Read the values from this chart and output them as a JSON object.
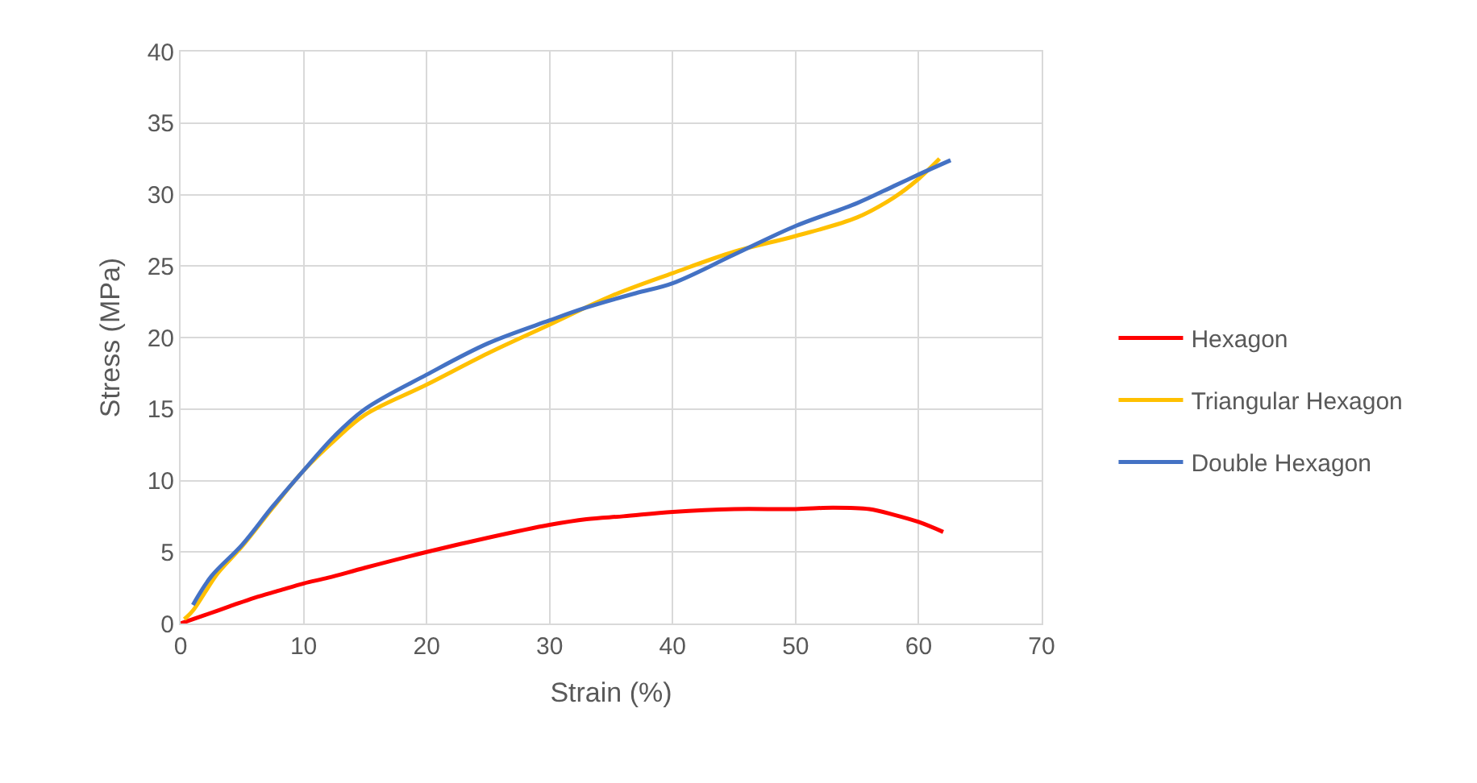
{
  "chart_data": {
    "type": "line",
    "xlabel": "Strain (%)",
    "ylabel": "Stress (MPa)",
    "xlim": [
      0,
      70
    ],
    "ylim": [
      0,
      40
    ],
    "xticks": [
      0,
      10,
      20,
      30,
      40,
      50,
      60,
      70
    ],
    "yticks": [
      0,
      5,
      10,
      15,
      20,
      25,
      30,
      35,
      40
    ],
    "grid": true,
    "legend": "right",
    "marker": "none",
    "line_style": "solid",
    "series": [
      {
        "name": "Hexagon",
        "color": "#ff0000",
        "x": [
          0,
          2,
          4,
          6,
          8,
          10,
          12,
          15,
          20,
          25,
          30,
          33,
          36,
          40,
          45,
          50,
          53,
          56,
          58,
          60,
          62
        ],
        "values": [
          0,
          0.6,
          1.2,
          1.8,
          2.3,
          2.8,
          3.2,
          3.9,
          5.0,
          6.0,
          6.9,
          7.3,
          7.5,
          7.8,
          8.0,
          8.0,
          8.1,
          8.0,
          7.6,
          7.1,
          6.4
        ]
      },
      {
        "name": "Triangular Hexagon",
        "color": "#ffc000",
        "x": [
          0.3,
          1,
          2,
          3,
          5,
          7.5,
          10,
          12.5,
          15,
          20,
          25,
          30,
          35,
          40,
          45,
          50,
          55,
          58,
          60,
          61.7
        ],
        "values": [
          0.3,
          0.9,
          2.2,
          3.5,
          5.4,
          8.1,
          10.7,
          12.8,
          14.6,
          16.7,
          18.9,
          20.9,
          22.9,
          24.5,
          26.0,
          27.1,
          28.4,
          29.8,
          31.1,
          32.5
        ]
      },
      {
        "name": "Double Hexagon",
        "color": "#4472c4",
        "x": [
          1,
          2.5,
          5,
          7.5,
          10,
          12.5,
          15,
          20,
          25,
          30,
          33,
          37,
          40,
          45,
          50,
          55,
          58,
          60,
          62.6
        ],
        "values": [
          1.3,
          3.3,
          5.5,
          8.2,
          10.7,
          13.1,
          15.0,
          17.4,
          19.6,
          21.2,
          22.1,
          23.1,
          23.8,
          25.8,
          27.8,
          29.4,
          30.6,
          31.4,
          32.4
        ]
      }
    ]
  }
}
